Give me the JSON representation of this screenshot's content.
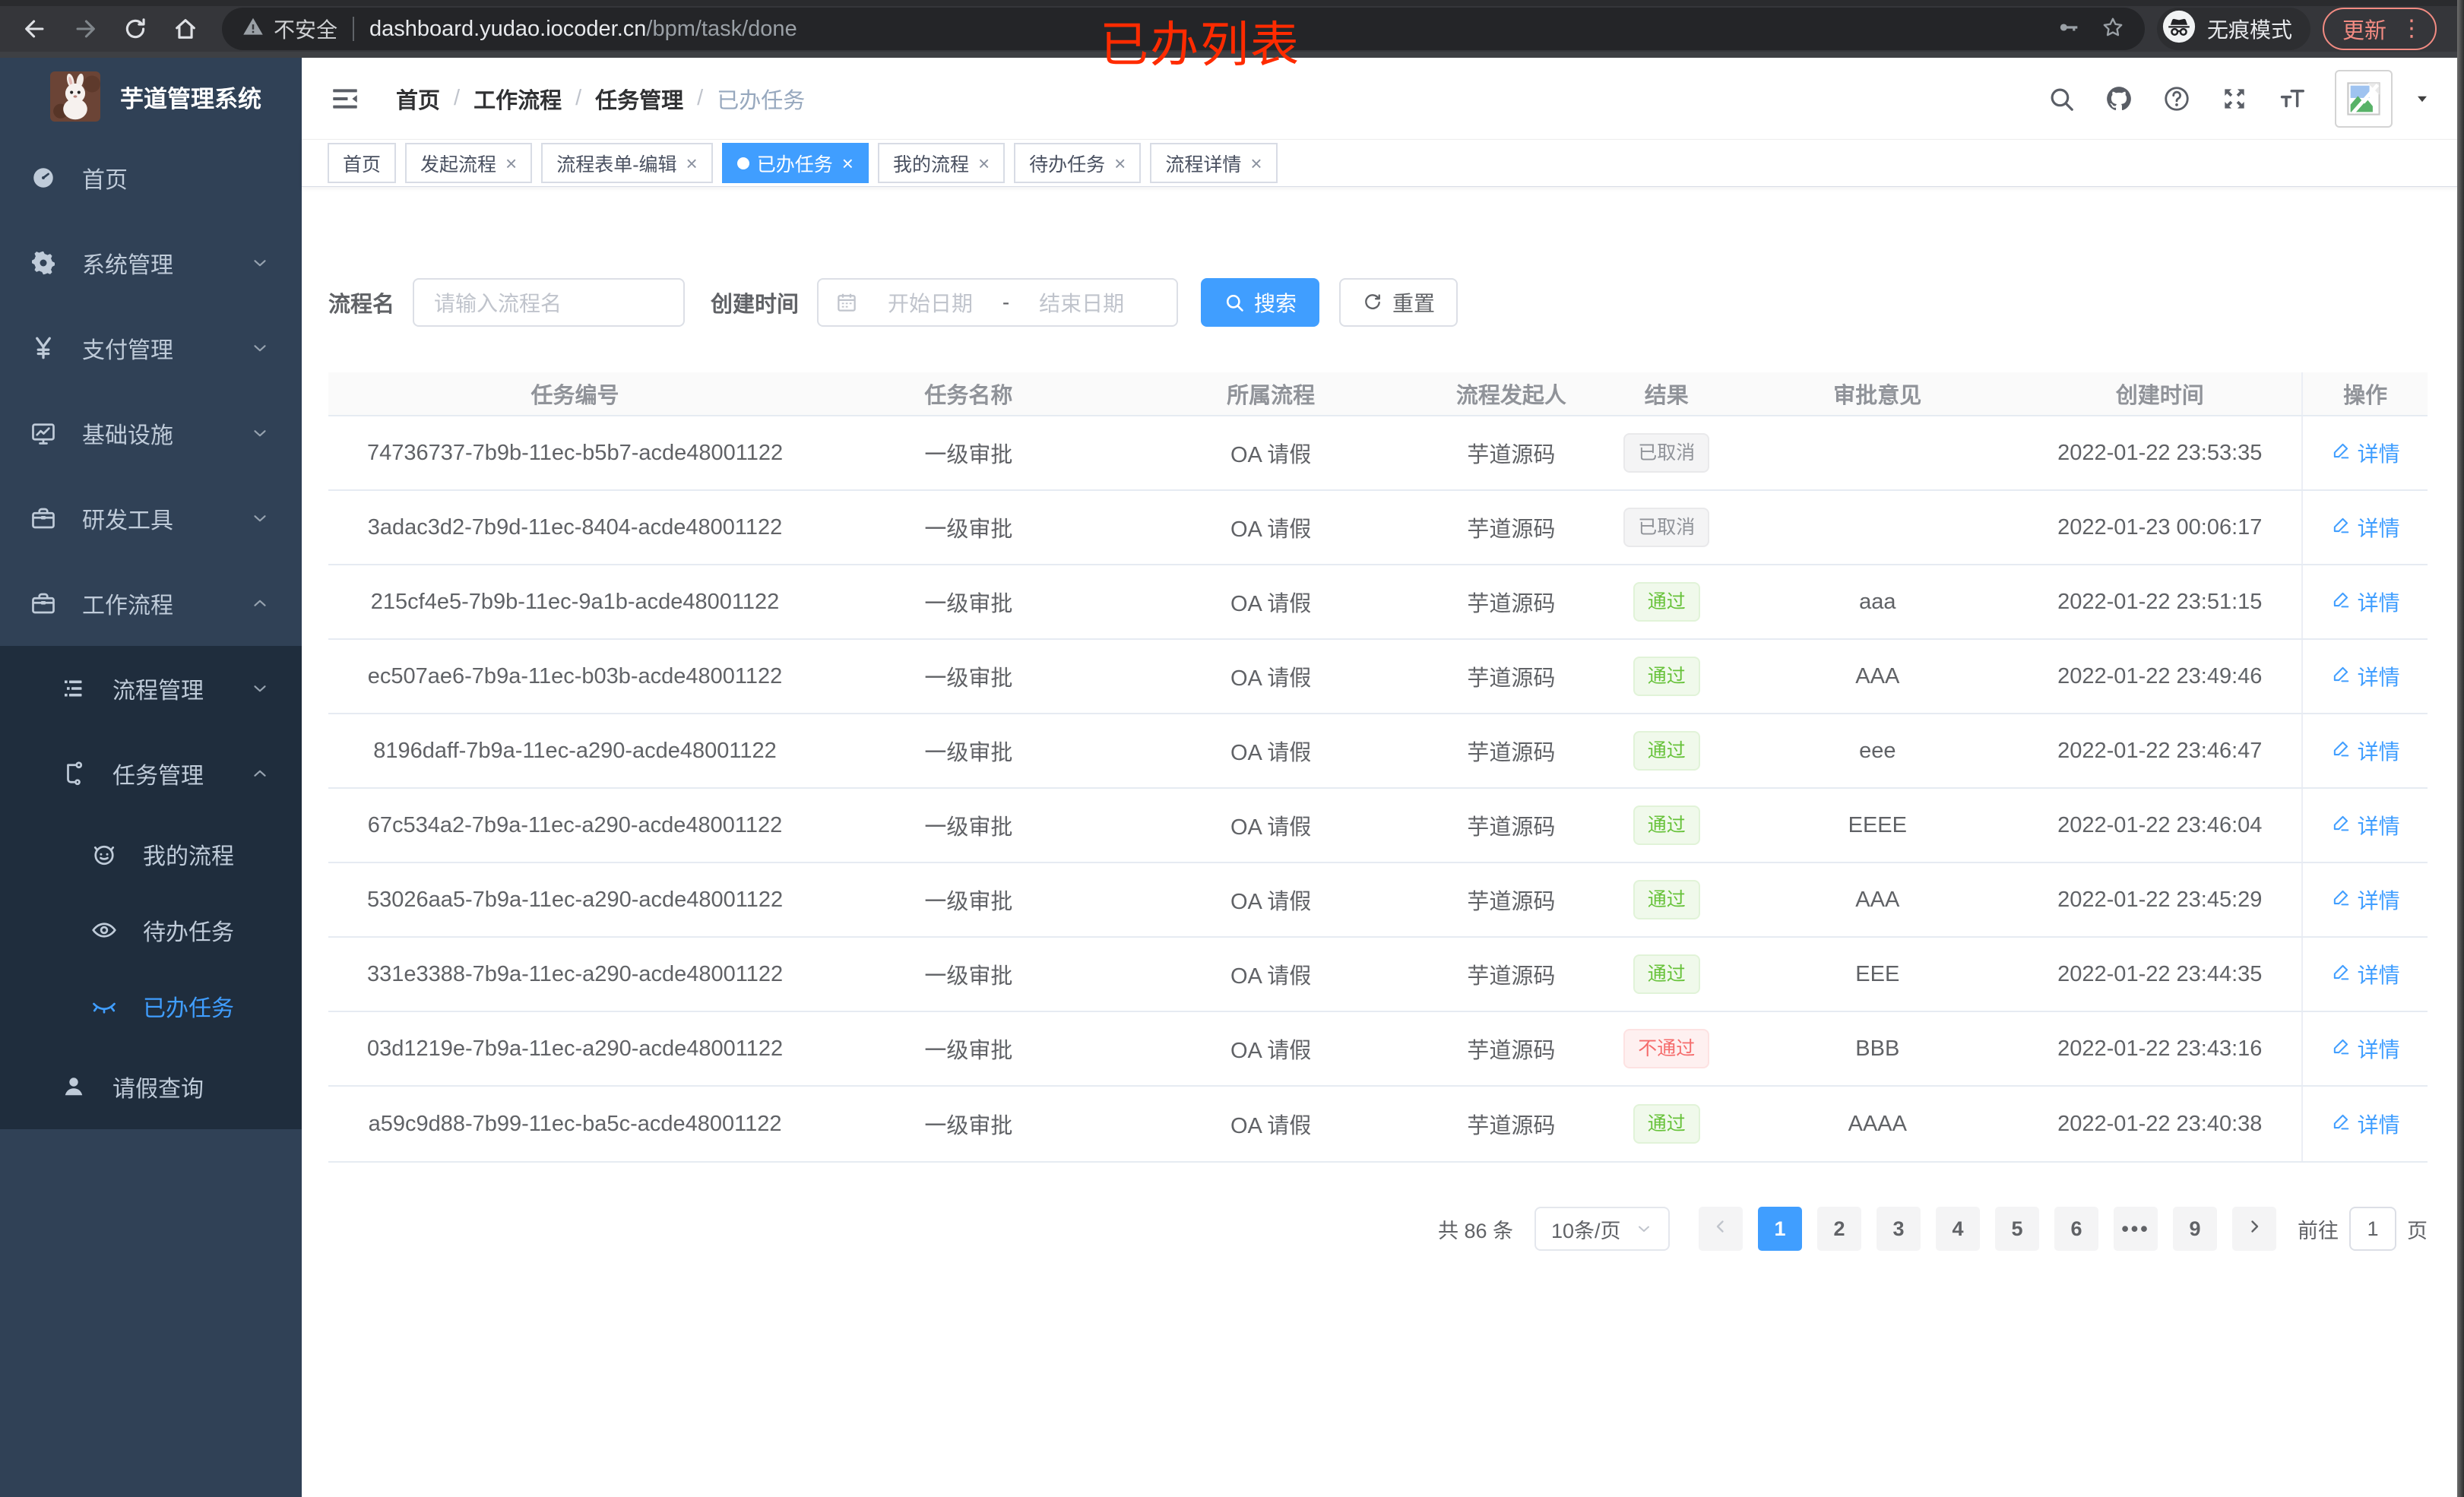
{
  "browser": {
    "nav_icons": [
      "back-icon",
      "forward-icon",
      "reload-icon",
      "home-icon"
    ],
    "security_label": "不安全",
    "url_domain": "dashboard.yudao.iocoder.cn",
    "url_path": "/bpm/task/done",
    "omnibox_icons": [
      "key-icon",
      "star-icon"
    ],
    "incognito_label": "无痕模式",
    "update_label": "更新",
    "update_color": "#f28b82"
  },
  "annotation": {
    "text": "已办列表",
    "color": "#ff2b00"
  },
  "sidebar": {
    "title": "芋道管理系统",
    "logo_icon": "rabbit-logo",
    "bg_color": "#304156",
    "submenu_bg_color": "#1f2d3d",
    "active_color": "#409eff",
    "items": [
      {
        "key": "home",
        "label": "首页",
        "icon": "gauge-icon",
        "level": 1,
        "arrow": null,
        "sub": false,
        "active": false
      },
      {
        "key": "system",
        "label": "系统管理",
        "icon": "gear-icon",
        "level": 1,
        "arrow": "down",
        "sub": false,
        "active": false
      },
      {
        "key": "payment",
        "label": "支付管理",
        "icon": "yen-icon",
        "level": 1,
        "arrow": "down",
        "sub": false,
        "active": false
      },
      {
        "key": "infra",
        "label": "基础设施",
        "icon": "monitor-icon",
        "level": 1,
        "arrow": "down",
        "sub": false,
        "active": false
      },
      {
        "key": "devtools",
        "label": "研发工具",
        "icon": "toolbox-icon",
        "level": 1,
        "arrow": "down",
        "sub": false,
        "active": false
      },
      {
        "key": "workflow",
        "label": "工作流程",
        "icon": "toolbox-icon",
        "level": 1,
        "arrow": "up",
        "sub": false,
        "active": false
      },
      {
        "key": "process-mgmt",
        "label": "流程管理",
        "icon": "list-icon",
        "level": 2,
        "arrow": "down",
        "sub": true,
        "active": false
      },
      {
        "key": "task-mgmt",
        "label": "任务管理",
        "icon": "tree-icon",
        "level": 2,
        "arrow": "up",
        "sub": true,
        "active": false
      },
      {
        "key": "my-process",
        "label": "我的流程",
        "icon": "robot-icon",
        "level": 3,
        "arrow": null,
        "sub": true,
        "active": false
      },
      {
        "key": "todo-task",
        "label": "待办任务",
        "icon": "eye-icon",
        "level": 3,
        "arrow": null,
        "sub": true,
        "active": false
      },
      {
        "key": "done-task",
        "label": "已办任务",
        "icon": "eye-closed-icon",
        "level": 3,
        "arrow": null,
        "sub": true,
        "active": true
      },
      {
        "key": "leave-query",
        "label": "请假查询",
        "icon": "user-icon",
        "level": 2,
        "arrow": null,
        "sub": true,
        "active": false
      }
    ]
  },
  "header": {
    "breadcrumb": [
      "首页",
      "工作流程",
      "任务管理",
      "已办任务"
    ],
    "tool_icons": [
      "search-icon",
      "github-icon",
      "help-icon",
      "fullscreen-icon",
      "font-size-icon"
    ]
  },
  "tabs": [
    {
      "key": "home",
      "label": "首页",
      "closable": false,
      "active": false
    },
    {
      "key": "start-process",
      "label": "发起流程",
      "closable": true,
      "active": false
    },
    {
      "key": "form-edit",
      "label": "流程表单-编辑",
      "closable": true,
      "active": false
    },
    {
      "key": "done-task",
      "label": "已办任务",
      "closable": true,
      "active": true
    },
    {
      "key": "my-process",
      "label": "我的流程",
      "closable": true,
      "active": false
    },
    {
      "key": "todo-task",
      "label": "待办任务",
      "closable": true,
      "active": false
    },
    {
      "key": "process-detail",
      "label": "流程详情",
      "closable": true,
      "active": false
    }
  ],
  "filters": {
    "name_label": "流程名",
    "name_placeholder": "请输入流程名",
    "time_label": "创建时间",
    "start_placeholder": "开始日期",
    "range_separator": "-",
    "end_placeholder": "结束日期",
    "search_label": "搜索",
    "reset_label": "重置"
  },
  "table": {
    "columns": [
      "任务编号",
      "任务名称",
      "所属流程",
      "流程发起人",
      "结果",
      "审批意见",
      "创建时间",
      "操作"
    ],
    "action_label": "详情",
    "rows": [
      {
        "id": "74736737-7b9b-11ec-b5b7-acde48001122",
        "name": "一级审批",
        "process": "OA 请假",
        "starter": "芋道源码",
        "result": "已取消",
        "result_type": "info",
        "opinion": "",
        "time": "2022-01-22 23:53:35"
      },
      {
        "id": "3adac3d2-7b9d-11ec-8404-acde48001122",
        "name": "一级审批",
        "process": "OA 请假",
        "starter": "芋道源码",
        "result": "已取消",
        "result_type": "info",
        "opinion": "",
        "time": "2022-01-23 00:06:17"
      },
      {
        "id": "215cf4e5-7b9b-11ec-9a1b-acde48001122",
        "name": "一级审批",
        "process": "OA 请假",
        "starter": "芋道源码",
        "result": "通过",
        "result_type": "success",
        "opinion": "aaa",
        "time": "2022-01-22 23:51:15"
      },
      {
        "id": "ec507ae6-7b9a-11ec-b03b-acde48001122",
        "name": "一级审批",
        "process": "OA 请假",
        "starter": "芋道源码",
        "result": "通过",
        "result_type": "success",
        "opinion": "AAA",
        "time": "2022-01-22 23:49:46"
      },
      {
        "id": "8196daff-7b9a-11ec-a290-acde48001122",
        "name": "一级审批",
        "process": "OA 请假",
        "starter": "芋道源码",
        "result": "通过",
        "result_type": "success",
        "opinion": "eee",
        "time": "2022-01-22 23:46:47"
      },
      {
        "id": "67c534a2-7b9a-11ec-a290-acde48001122",
        "name": "一级审批",
        "process": "OA 请假",
        "starter": "芋道源码",
        "result": "通过",
        "result_type": "success",
        "opinion": "EEEE",
        "time": "2022-01-22 23:46:04"
      },
      {
        "id": "53026aa5-7b9a-11ec-a290-acde48001122",
        "name": "一级审批",
        "process": "OA 请假",
        "starter": "芋道源码",
        "result": "通过",
        "result_type": "success",
        "opinion": "AAA",
        "time": "2022-01-22 23:45:29"
      },
      {
        "id": "331e3388-7b9a-11ec-a290-acde48001122",
        "name": "一级审批",
        "process": "OA 请假",
        "starter": "芋道源码",
        "result": "通过",
        "result_type": "success",
        "opinion": "EEE",
        "time": "2022-01-22 23:44:35"
      },
      {
        "id": "03d1219e-7b9a-11ec-a290-acde48001122",
        "name": "一级审批",
        "process": "OA 请假",
        "starter": "芋道源码",
        "result": "不通过",
        "result_type": "danger",
        "opinion": "BBB",
        "time": "2022-01-22 23:43:16"
      },
      {
        "id": "a59c9d88-7b99-11ec-ba5c-acde48001122",
        "name": "一级审批",
        "process": "OA 请假",
        "starter": "芋道源码",
        "result": "通过",
        "result_type": "success",
        "opinion": "AAAA",
        "time": "2022-01-22 23:40:38"
      }
    ]
  },
  "pagination": {
    "total_label": "共 86 条",
    "page_size": "10条/页",
    "pages": [
      "1",
      "2",
      "3",
      "4",
      "5",
      "6",
      "more",
      "9"
    ],
    "active_page": "1",
    "more_symbol": "•••",
    "goto_label": "前往",
    "goto_value": "1",
    "page_unit": "页"
  },
  "colors": {
    "accent": "#409eff",
    "success": "#67c23a",
    "danger": "#f56c6c",
    "info": "#909399",
    "sidebar_bg": "#304156",
    "submenu_bg": "#1f2d3d"
  }
}
